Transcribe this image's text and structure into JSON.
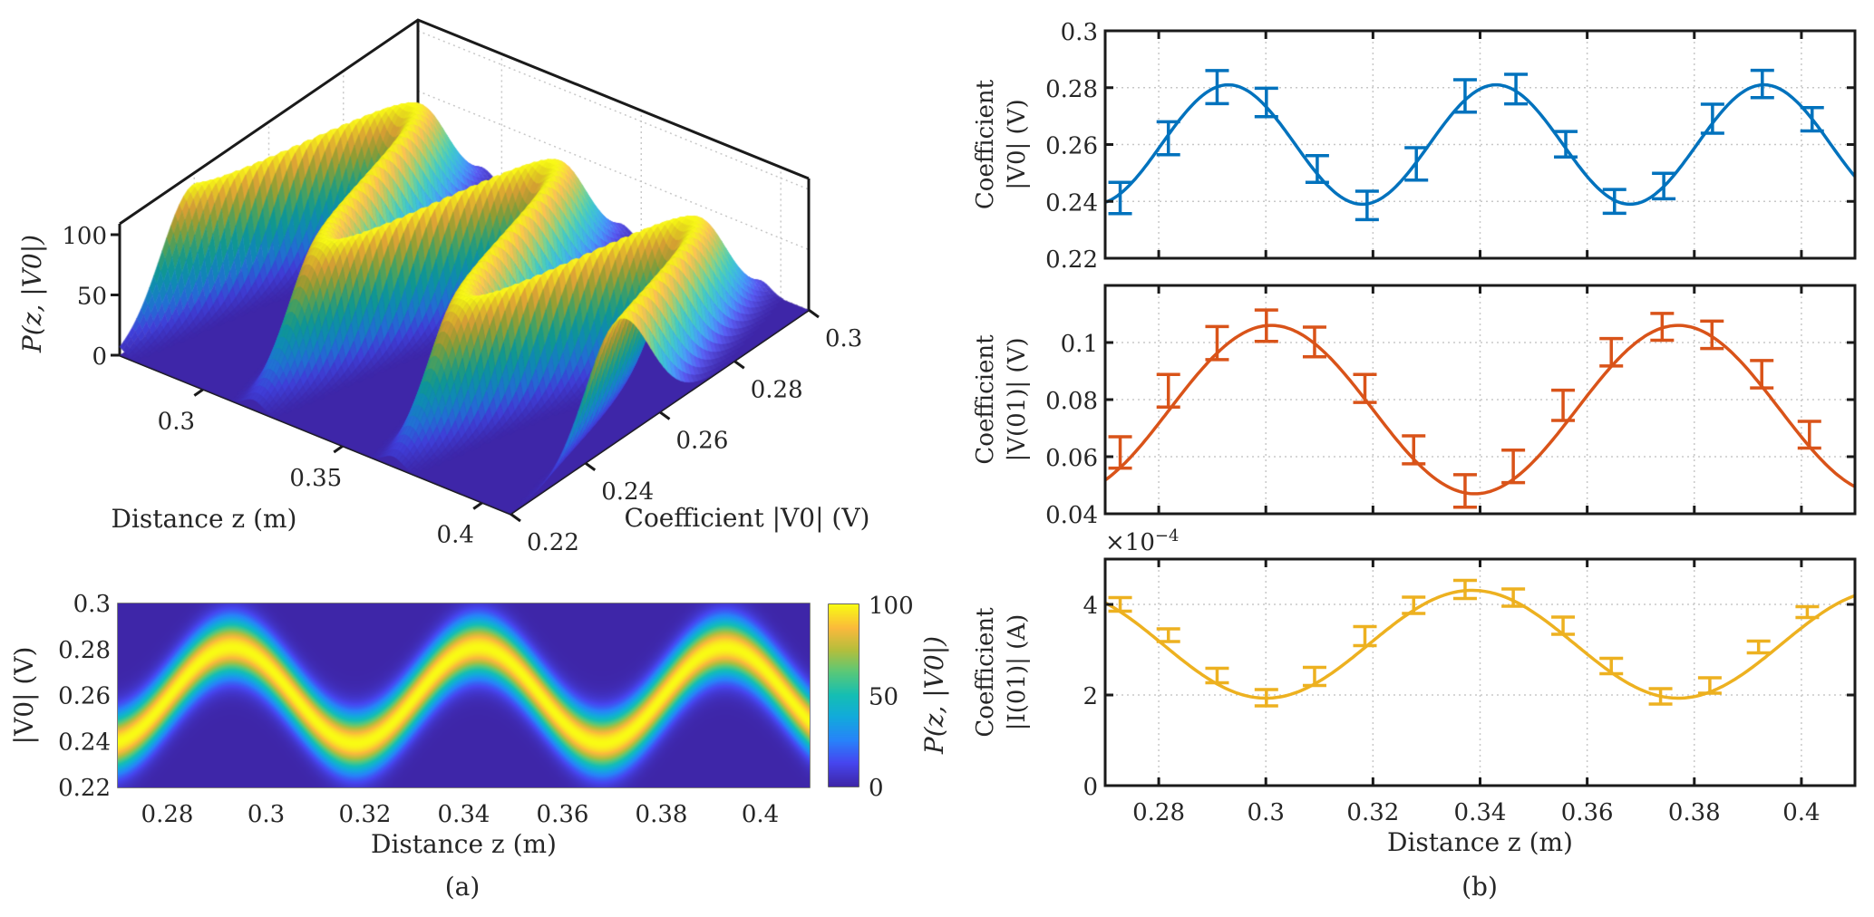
{
  "figure": {
    "panel_a_caption": "(a)",
    "panel_b_caption": "(b)",
    "colors": {
      "parula_low": "#3E26A8",
      "series_v0": "#0072BD",
      "series_v01": "#D95319",
      "series_i01": "#EDB120",
      "axes": "#262626",
      "grid": "#c8c8c8"
    }
  },
  "chart_data": [
    {
      "id": "surface3d",
      "type": "surface",
      "description": "3D surface of P(z,|V0|) over distance z and coefficient |V0|",
      "xlabel": "Distance z (m)",
      "ylabel": "Coefficient |V0| (V)",
      "zlabel": "P(z, |V0|)",
      "xlim": [
        0.27,
        0.41
      ],
      "ylim": [
        0.22,
        0.3
      ],
      "zlim": [
        0,
        109
      ],
      "xticks": [
        "0.3",
        "0.35",
        "0.4"
      ],
      "xtick_values": [
        0.3,
        0.35,
        0.4
      ],
      "yticks": [
        "0.22",
        "0.24",
        "0.26",
        "0.28",
        "0.3"
      ],
      "ytick_values": [
        0.22,
        0.24,
        0.26,
        0.28,
        0.3
      ],
      "zticks": [
        "0",
        "50",
        "100"
      ],
      "ztick_values": [
        0,
        50,
        100
      ],
      "model": {
        "mean_v": 0.26,
        "amp_v": 0.021,
        "period_z": 0.05,
        "peak_z": 0.293,
        "sigma_v": 0.0085,
        "peak_p": 100
      }
    },
    {
      "id": "heatmap",
      "type": "heatmap",
      "xlabel": "Distance z (m)",
      "ylabel": "|V0| (V)",
      "colorbar_label": "P(z, |V0|)",
      "xlim": [
        0.27,
        0.41
      ],
      "ylim": [
        0.22,
        0.3
      ],
      "clim": [
        0,
        100
      ],
      "xticks": [
        "0.28",
        "0.3",
        "0.32",
        "0.34",
        "0.36",
        "0.38",
        "0.4"
      ],
      "xtick_values": [
        0.28,
        0.3,
        0.32,
        0.34,
        0.36,
        0.38,
        0.4
      ],
      "yticks": [
        "0.22",
        "0.24",
        "0.26",
        "0.28",
        "0.3"
      ],
      "ytick_values": [
        0.22,
        0.24,
        0.26,
        0.28,
        0.3
      ],
      "cticks": [
        "0",
        "50",
        "100"
      ],
      "ctick_values": [
        0,
        50,
        100
      ],
      "model": {
        "mean_v": 0.26,
        "amp_v": 0.021,
        "period_z": 0.05,
        "peak_z": 0.293,
        "sigma_v": 0.0085,
        "peak_p": 100
      }
    },
    {
      "id": "v0",
      "type": "line",
      "ylabel_line1": "Coefficient",
      "ylabel_line2": "|V0| (V)",
      "xlim": [
        0.27,
        0.41
      ],
      "ylim": [
        0.22,
        0.3
      ],
      "yticks": [
        "0.22",
        "0.24",
        "0.26",
        "0.28",
        "0.3"
      ],
      "ytick_values": [
        0.22,
        0.24,
        0.26,
        0.28,
        0.3
      ],
      "xtick_values": [
        0.28,
        0.3,
        0.32,
        0.34,
        0.36,
        0.38,
        0.4
      ],
      "grid": true,
      "fit": {
        "mean": 0.26,
        "amp": 0.021,
        "period": 0.05,
        "peak_z": 0.293
      },
      "x": [
        0.2728,
        0.2818,
        0.2909,
        0.3001,
        0.3096,
        0.3189,
        0.3281,
        0.3372,
        0.3467,
        0.356,
        0.3651,
        0.3743,
        0.3834,
        0.3927,
        0.402
      ],
      "values": [
        0.2412,
        0.2622,
        0.2802,
        0.2748,
        0.2514,
        0.2386,
        0.2532,
        0.2771,
        0.2795,
        0.2601,
        0.24,
        0.2454,
        0.2691,
        0.2813,
        0.2689
      ],
      "errors": [
        0.0055,
        0.0058,
        0.0058,
        0.005,
        0.0047,
        0.005,
        0.0057,
        0.0057,
        0.0052,
        0.0045,
        0.0042,
        0.0045,
        0.0051,
        0.0048,
        0.0041
      ]
    },
    {
      "id": "v01",
      "type": "line",
      "ylabel_line1": "Coefficient",
      "ylabel_line2": "|V(01)| (V)",
      "xlim": [
        0.27,
        0.41
      ],
      "ylim": [
        0.04,
        0.12
      ],
      "yticks": [
        "0.04",
        "0.06",
        "0.08",
        "0.1"
      ],
      "ytick_values": [
        0.04,
        0.06,
        0.08,
        0.1
      ],
      "xtick_values": [
        0.28,
        0.3,
        0.32,
        0.34,
        0.36,
        0.38,
        0.4
      ],
      "grid": true,
      "fit": {
        "mean": 0.0765,
        "amp": 0.0295,
        "period": 0.076,
        "peak_z": 0.301
      },
      "x": [
        0.2728,
        0.2818,
        0.2909,
        0.3001,
        0.3091,
        0.3185,
        0.3276,
        0.3372,
        0.3462,
        0.3555,
        0.3645,
        0.374,
        0.3833,
        0.3926,
        0.4015
      ],
      "values": [
        0.0615,
        0.0831,
        0.0998,
        0.1059,
        0.1002,
        0.0839,
        0.0624,
        0.048,
        0.0566,
        0.078,
        0.0966,
        0.1055,
        0.1027,
        0.0889,
        0.0677
      ],
      "errors": [
        0.0055,
        0.0057,
        0.0058,
        0.0055,
        0.0052,
        0.0049,
        0.0049,
        0.0057,
        0.0057,
        0.0053,
        0.0048,
        0.0047,
        0.0048,
        0.0048,
        0.0047
      ]
    },
    {
      "id": "i01",
      "type": "line",
      "ylabel_line1": "Coefficient",
      "ylabel_line2": "|I(01)| (A)",
      "exponent_label": "×10",
      "exponent_power": "−4",
      "xlim": [
        0.27,
        0.41
      ],
      "ylim": [
        0,
        5
      ],
      "yticks": [
        "0",
        "2",
        "4"
      ],
      "ytick_values": [
        0,
        2,
        4
      ],
      "xticks": [
        "0.28",
        "0.3",
        "0.32",
        "0.34",
        "0.36",
        "0.38",
        "0.4"
      ],
      "xtick_values": [
        0.28,
        0.3,
        0.32,
        0.34,
        0.36,
        0.38,
        0.4
      ],
      "xlabel": "Distance z (m)",
      "grid": true,
      "fit": {
        "mean": 3.12,
        "amp": 1.19,
        "period": 0.077,
        "trough_z": 0.3
      },
      "x": [
        0.2728,
        0.2818,
        0.2909,
        0.3001,
        0.3091,
        0.3185,
        0.3276,
        0.3372,
        0.3462,
        0.3555,
        0.3645,
        0.3737,
        0.3829,
        0.392,
        0.4011
      ],
      "values": [
        4.0,
        3.32,
        2.43,
        1.94,
        2.41,
        3.3,
        3.98,
        4.33,
        4.15,
        3.53,
        2.64,
        1.97,
        2.21,
        3.06,
        3.83
      ],
      "errors": [
        0.15,
        0.14,
        0.16,
        0.18,
        0.2,
        0.21,
        0.18,
        0.2,
        0.19,
        0.19,
        0.17,
        0.17,
        0.17,
        0.13,
        0.12
      ]
    }
  ]
}
